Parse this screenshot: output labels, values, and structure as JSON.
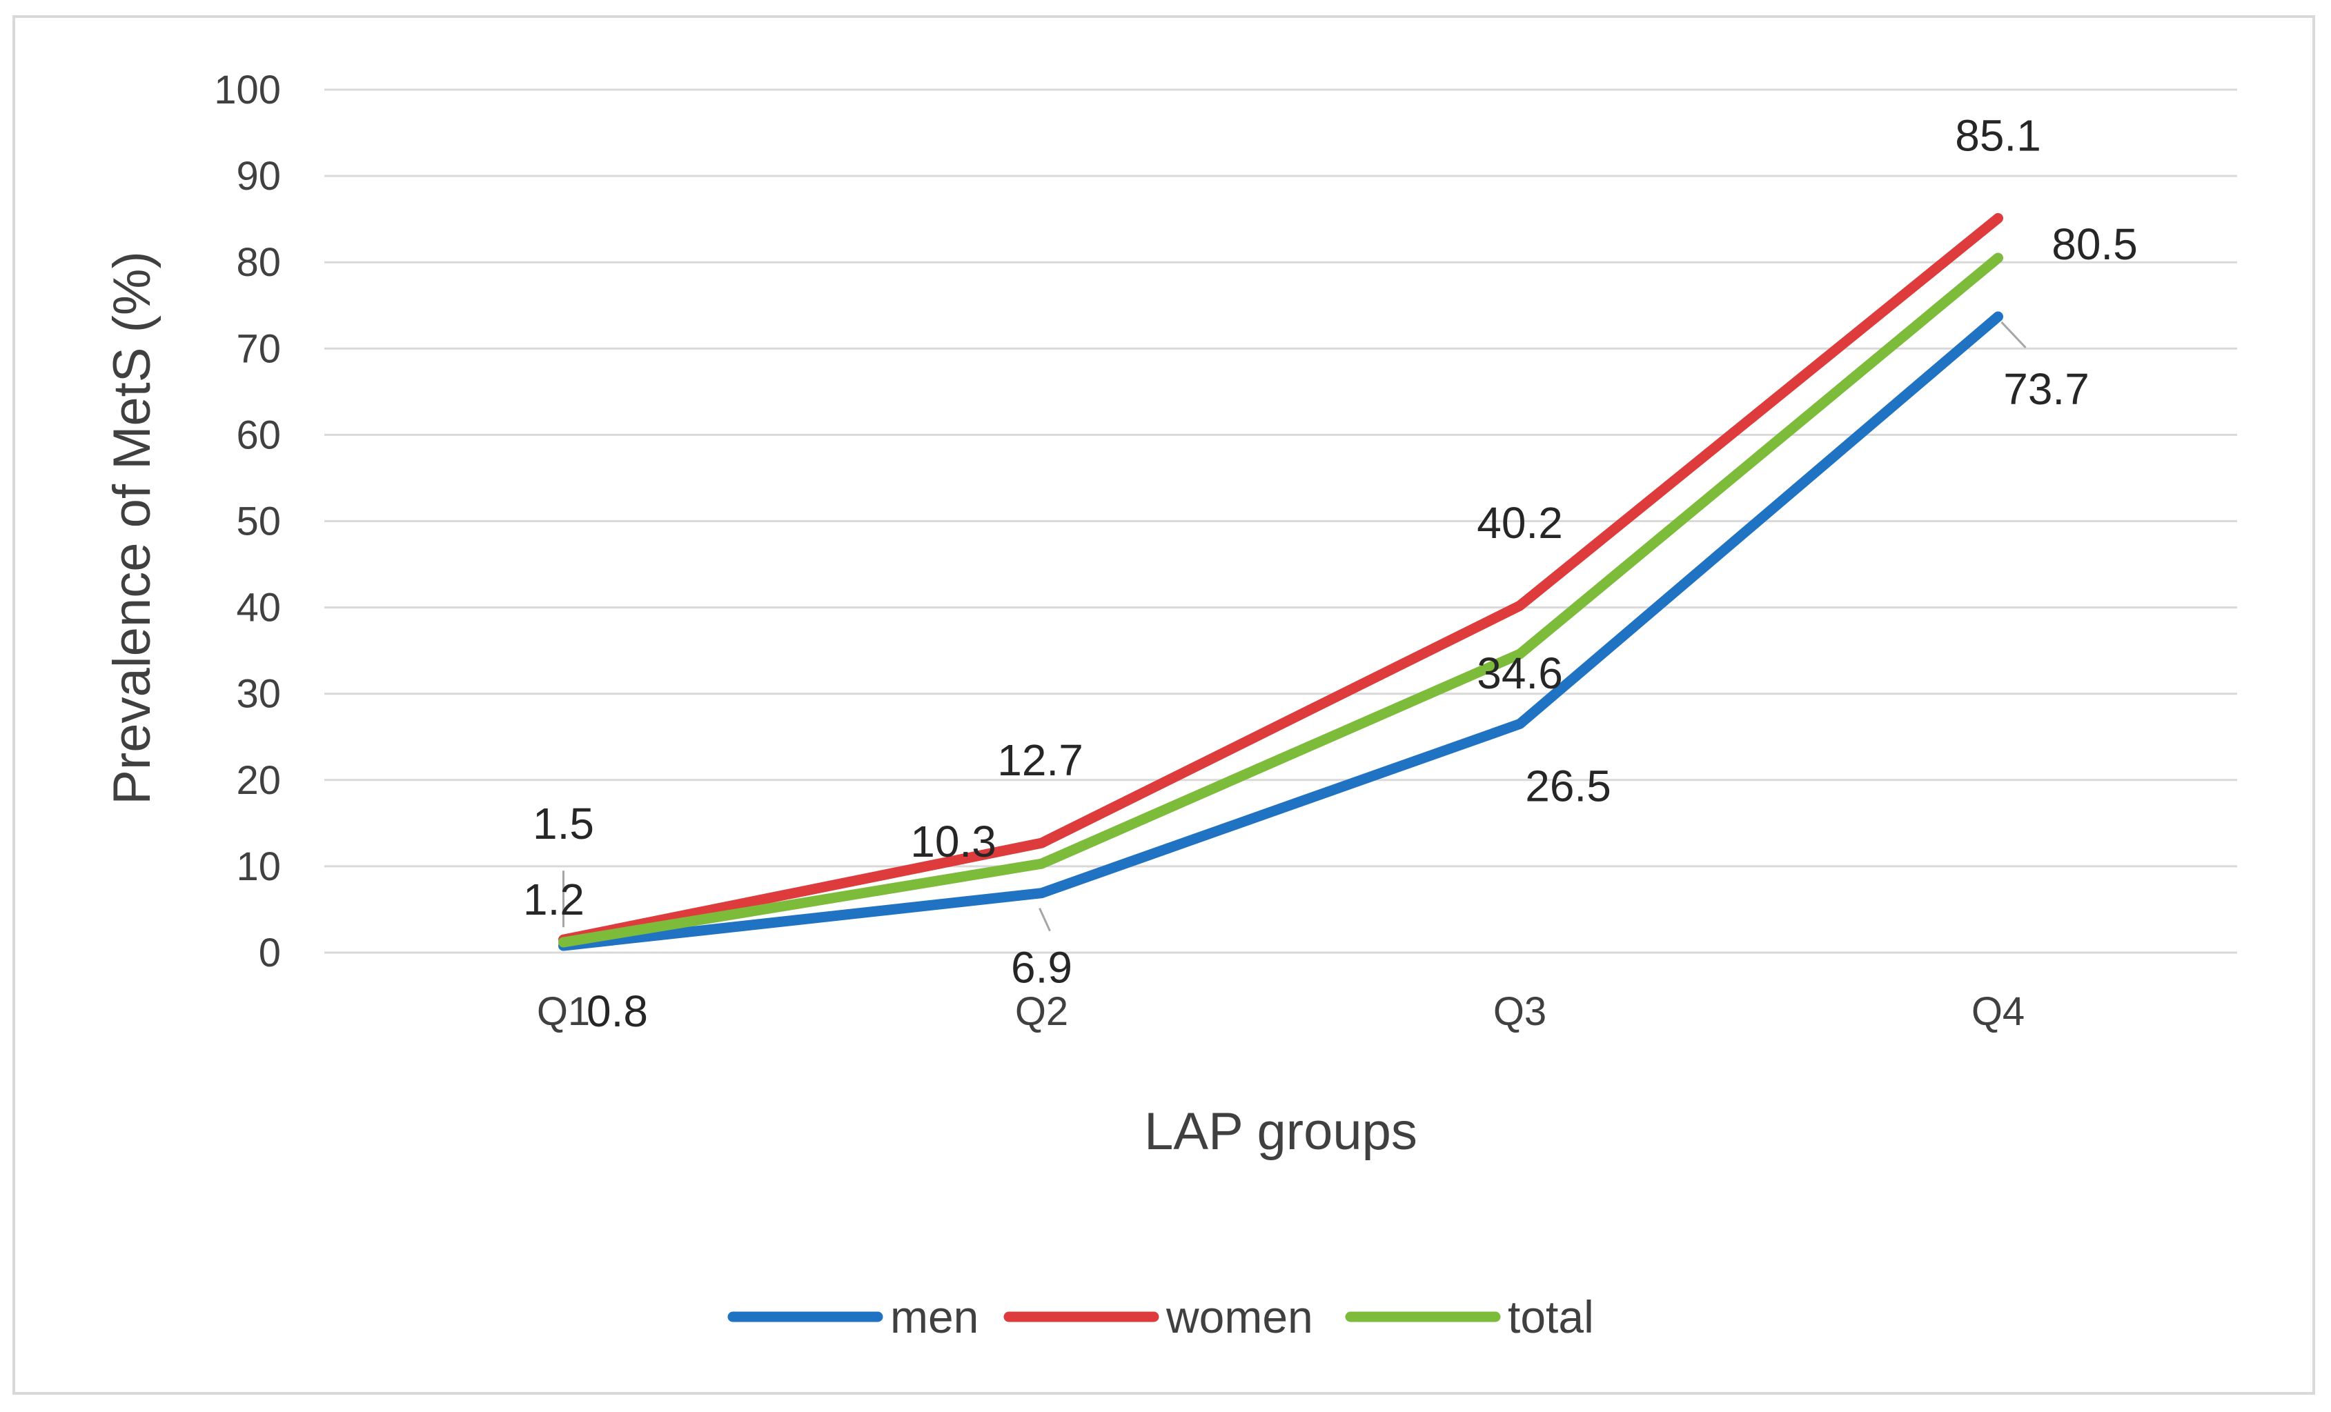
{
  "chart_data": {
    "type": "line",
    "categories": [
      "Q1",
      "Q2",
      "Q3",
      "Q4"
    ],
    "xlabel": "LAP groups",
    "ylabel": "Prevalence of MetS (%)",
    "ylim": [
      0,
      100
    ],
    "yticks": [
      0,
      10,
      20,
      30,
      40,
      50,
      60,
      70,
      80,
      90,
      100
    ],
    "grid": "horizontal",
    "legend_position": "bottom",
    "series": [
      {
        "name": "men",
        "color": "#1f73c2",
        "values": [
          0.8,
          6.9,
          26.5,
          73.7
        ],
        "labels": [
          "0.8",
          "6.9",
          "26.5",
          "73.7"
        ]
      },
      {
        "name": "women",
        "color": "#de3c3c",
        "values": [
          1.5,
          12.7,
          40.2,
          85.1
        ],
        "labels": [
          "1.5",
          "12.7",
          "40.2",
          "85.1"
        ]
      },
      {
        "name": "total",
        "color": "#7dbb3a",
        "values": [
          1.2,
          10.3,
          34.6,
          80.5
        ],
        "labels": [
          "1.2",
          "10.3",
          "34.6",
          "80.5"
        ]
      }
    ]
  }
}
